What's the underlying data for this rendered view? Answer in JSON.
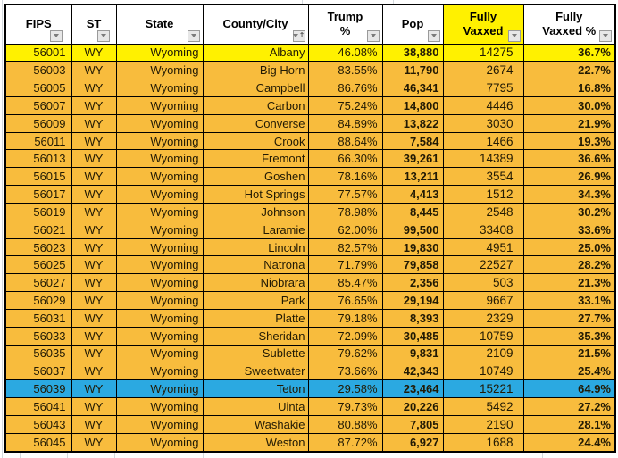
{
  "sheet": {
    "columns": [
      {
        "key": "fips",
        "label": "FIPS",
        "lines": [
          "FIPS"
        ],
        "filter_icon": "filter-dropdown"
      },
      {
        "key": "st",
        "label": "ST",
        "lines": [
          "ST"
        ],
        "filter_icon": "filter-dropdown"
      },
      {
        "key": "state",
        "label": "State",
        "lines": [
          "State"
        ],
        "filter_icon": "filter-dropdown"
      },
      {
        "key": "county",
        "label": "County/City",
        "lines": [
          "County/City"
        ],
        "filter_icon": "filter-dropdown-sort-asc"
      },
      {
        "key": "trump_pct",
        "label": "Trump %",
        "lines": [
          "Trump",
          "%"
        ],
        "filter_icon": "filter-dropdown"
      },
      {
        "key": "pop",
        "label": "Pop",
        "lines": [
          "Pop"
        ],
        "filter_icon": "filter-dropdown"
      },
      {
        "key": "fully_vaxxed",
        "label": "Fully Vaxxed",
        "lines": [
          "Fully",
          "Vaxxed"
        ],
        "filter_icon": "filter-dropdown",
        "header_bg": "#FFF100"
      },
      {
        "key": "fully_vaxxed_pct",
        "label": "Fully Vaxxed %",
        "lines": [
          "Fully",
          "Vaxxed %"
        ],
        "filter_icon": "filter-dropdown"
      }
    ],
    "rows": [
      {
        "fips": "56001",
        "st": "WY",
        "state": "Wyoming",
        "county": "Albany",
        "trump_pct": "46.08%",
        "pop": "38,880",
        "fully_vaxxed": "14275",
        "fully_vaxxed_pct": "36.7%",
        "highlight": "yellow"
      },
      {
        "fips": "56003",
        "st": "WY",
        "state": "Wyoming",
        "county": "Big Horn",
        "trump_pct": "83.55%",
        "pop": "11,790",
        "fully_vaxxed": "2674",
        "fully_vaxxed_pct": "22.7%",
        "highlight": "none"
      },
      {
        "fips": "56005",
        "st": "WY",
        "state": "Wyoming",
        "county": "Campbell",
        "trump_pct": "86.76%",
        "pop": "46,341",
        "fully_vaxxed": "7795",
        "fully_vaxxed_pct": "16.8%",
        "highlight": "none"
      },
      {
        "fips": "56007",
        "st": "WY",
        "state": "Wyoming",
        "county": "Carbon",
        "trump_pct": "75.24%",
        "pop": "14,800",
        "fully_vaxxed": "4446",
        "fully_vaxxed_pct": "30.0%",
        "highlight": "none"
      },
      {
        "fips": "56009",
        "st": "WY",
        "state": "Wyoming",
        "county": "Converse",
        "trump_pct": "84.89%",
        "pop": "13,822",
        "fully_vaxxed": "3030",
        "fully_vaxxed_pct": "21.9%",
        "highlight": "none"
      },
      {
        "fips": "56011",
        "st": "WY",
        "state": "Wyoming",
        "county": "Crook",
        "trump_pct": "88.64%",
        "pop": "7,584",
        "fully_vaxxed": "1466",
        "fully_vaxxed_pct": "19.3%",
        "highlight": "none"
      },
      {
        "fips": "56013",
        "st": "WY",
        "state": "Wyoming",
        "county": "Fremont",
        "trump_pct": "66.30%",
        "pop": "39,261",
        "fully_vaxxed": "14389",
        "fully_vaxxed_pct": "36.6%",
        "highlight": "none"
      },
      {
        "fips": "56015",
        "st": "WY",
        "state": "Wyoming",
        "county": "Goshen",
        "trump_pct": "78.16%",
        "pop": "13,211",
        "fully_vaxxed": "3554",
        "fully_vaxxed_pct": "26.9%",
        "highlight": "none"
      },
      {
        "fips": "56017",
        "st": "WY",
        "state": "Wyoming",
        "county": "Hot Springs",
        "trump_pct": "77.57%",
        "pop": "4,413",
        "fully_vaxxed": "1512",
        "fully_vaxxed_pct": "34.3%",
        "highlight": "none"
      },
      {
        "fips": "56019",
        "st": "WY",
        "state": "Wyoming",
        "county": "Johnson",
        "trump_pct": "78.98%",
        "pop": "8,445",
        "fully_vaxxed": "2548",
        "fully_vaxxed_pct": "30.2%",
        "highlight": "none"
      },
      {
        "fips": "56021",
        "st": "WY",
        "state": "Wyoming",
        "county": "Laramie",
        "trump_pct": "62.00%",
        "pop": "99,500",
        "fully_vaxxed": "33408",
        "fully_vaxxed_pct": "33.6%",
        "highlight": "none"
      },
      {
        "fips": "56023",
        "st": "WY",
        "state": "Wyoming",
        "county": "Lincoln",
        "trump_pct": "82.57%",
        "pop": "19,830",
        "fully_vaxxed": "4951",
        "fully_vaxxed_pct": "25.0%",
        "highlight": "none"
      },
      {
        "fips": "56025",
        "st": "WY",
        "state": "Wyoming",
        "county": "Natrona",
        "trump_pct": "71.79%",
        "pop": "79,858",
        "fully_vaxxed": "22527",
        "fully_vaxxed_pct": "28.2%",
        "highlight": "none"
      },
      {
        "fips": "56027",
        "st": "WY",
        "state": "Wyoming",
        "county": "Niobrara",
        "trump_pct": "85.47%",
        "pop": "2,356",
        "fully_vaxxed": "503",
        "fully_vaxxed_pct": "21.3%",
        "highlight": "none"
      },
      {
        "fips": "56029",
        "st": "WY",
        "state": "Wyoming",
        "county": "Park",
        "trump_pct": "76.65%",
        "pop": "29,194",
        "fully_vaxxed": "9667",
        "fully_vaxxed_pct": "33.1%",
        "highlight": "none"
      },
      {
        "fips": "56031",
        "st": "WY",
        "state": "Wyoming",
        "county": "Platte",
        "trump_pct": "79.18%",
        "pop": "8,393",
        "fully_vaxxed": "2329",
        "fully_vaxxed_pct": "27.7%",
        "highlight": "none"
      },
      {
        "fips": "56033",
        "st": "WY",
        "state": "Wyoming",
        "county": "Sheridan",
        "trump_pct": "72.09%",
        "pop": "30,485",
        "fully_vaxxed": "10759",
        "fully_vaxxed_pct": "35.3%",
        "highlight": "none"
      },
      {
        "fips": "56035",
        "st": "WY",
        "state": "Wyoming",
        "county": "Sublette",
        "trump_pct": "79.62%",
        "pop": "9,831",
        "fully_vaxxed": "2109",
        "fully_vaxxed_pct": "21.5%",
        "highlight": "none"
      },
      {
        "fips": "56037",
        "st": "WY",
        "state": "Wyoming",
        "county": "Sweetwater",
        "trump_pct": "73.66%",
        "pop": "42,343",
        "fully_vaxxed": "10749",
        "fully_vaxxed_pct": "25.4%",
        "highlight": "none"
      },
      {
        "fips": "56039",
        "st": "WY",
        "state": "Wyoming",
        "county": "Teton",
        "trump_pct": "29.58%",
        "pop": "23,464",
        "fully_vaxxed": "15221",
        "fully_vaxxed_pct": "64.9%",
        "highlight": "blue"
      },
      {
        "fips": "56041",
        "st": "WY",
        "state": "Wyoming",
        "county": "Uinta",
        "trump_pct": "79.73%",
        "pop": "20,226",
        "fully_vaxxed": "5492",
        "fully_vaxxed_pct": "27.2%",
        "highlight": "none"
      },
      {
        "fips": "56043",
        "st": "WY",
        "state": "Wyoming",
        "county": "Washakie",
        "trump_pct": "80.88%",
        "pop": "7,805",
        "fully_vaxxed": "2190",
        "fully_vaxxed_pct": "28.1%",
        "highlight": "none"
      },
      {
        "fips": "56045",
        "st": "WY",
        "state": "Wyoming",
        "county": "Weston",
        "trump_pct": "87.72%",
        "pop": "6,927",
        "fully_vaxxed": "1688",
        "fully_vaxxed_pct": "24.4%",
        "highlight": "none"
      }
    ],
    "colors": {
      "row_default": "#F8BC3D",
      "row_highlight_yellow": "#FFF100",
      "row_highlight_blue": "#2BA9E1",
      "header_bg": "#FFFFFF",
      "header_highlight_bg": "#FFF100",
      "grid_border": "#000000",
      "sheet_gridline": "#D4D9DE"
    }
  }
}
